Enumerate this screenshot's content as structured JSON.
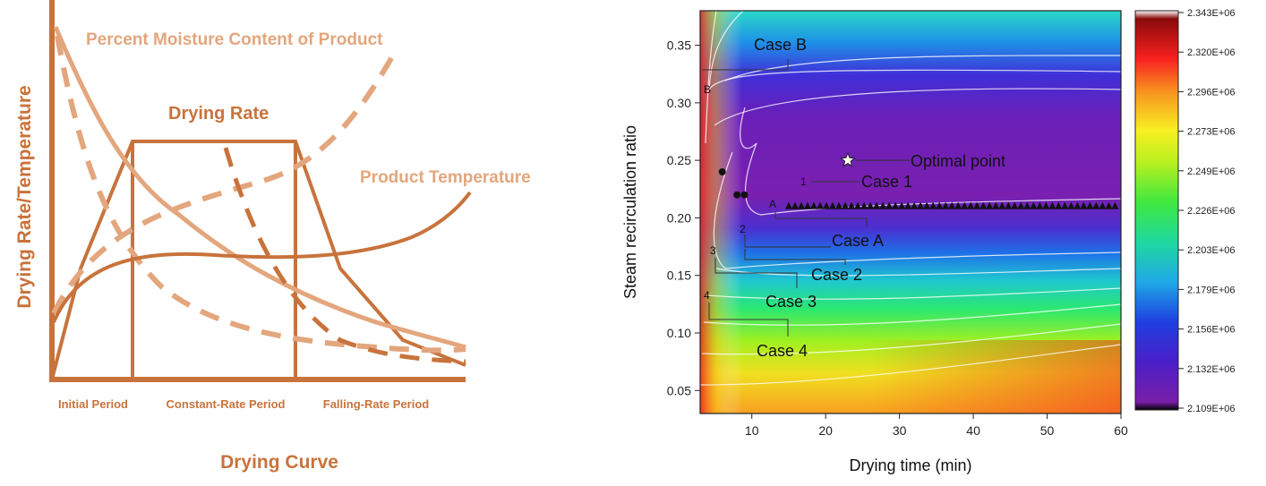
{
  "chart_data": [
    {
      "type": "line",
      "title": "Drying Curve",
      "ylabel": "Drying Rate/Temperature",
      "period_labels": [
        "Initial Period",
        "Constant-Rate Period",
        "Falling-Rate Period"
      ],
      "labels": {
        "moisture": "Percent Moisture Content of Product",
        "rate": "Drying Rate",
        "temperature": "Product Temperature"
      },
      "colors": {
        "main": "#c8733c",
        "light": "#e3a67d"
      }
    },
    {
      "type": "heatmap",
      "xlabel": "Drying time (min)",
      "ylabel": "Steam recirculation ratio",
      "xlim": [
        3,
        60
      ],
      "ylim": [
        0.03,
        0.38
      ],
      "xticks": [
        "10",
        "20",
        "30",
        "40",
        "50",
        "60"
      ],
      "yticks": [
        "0.05",
        "0.10",
        "0.15",
        "0.20",
        "0.25",
        "0.30",
        "0.35"
      ],
      "colorbar_ticks": [
        "2.343E+06",
        "2.320E+06",
        "2.296E+06",
        "2.273E+06",
        "2.249E+06",
        "2.226E+06",
        "2.203E+06",
        "2.179E+06",
        "2.156E+06",
        "2.132E+06",
        "2.109E+06"
      ],
      "colorbar_range": [
        2109000.0,
        2343000.0
      ],
      "points": {
        "optimal": {
          "x": 23,
          "y": 0.25
        },
        "case1": [
          {
            "x": 6,
            "y": 0.24
          },
          {
            "x": 8,
            "y": 0.22
          },
          {
            "x": 9,
            "y": 0.22
          }
        ],
        "caseA_start": 15,
        "caseA_end": 60,
        "caseA_y": 0.21
      },
      "annotations": [
        {
          "text": "Case B",
          "marker": "B"
        },
        {
          "text": "Optimal point",
          "marker": ""
        },
        {
          "text": "Case 1",
          "marker": "1"
        },
        {
          "text": "Case A",
          "marker": "A"
        },
        {
          "text": "Case 2",
          "marker": "2"
        },
        {
          "text": "Case 3",
          "marker": "3"
        },
        {
          "text": "Case 4",
          "marker": "4"
        }
      ]
    }
  ]
}
